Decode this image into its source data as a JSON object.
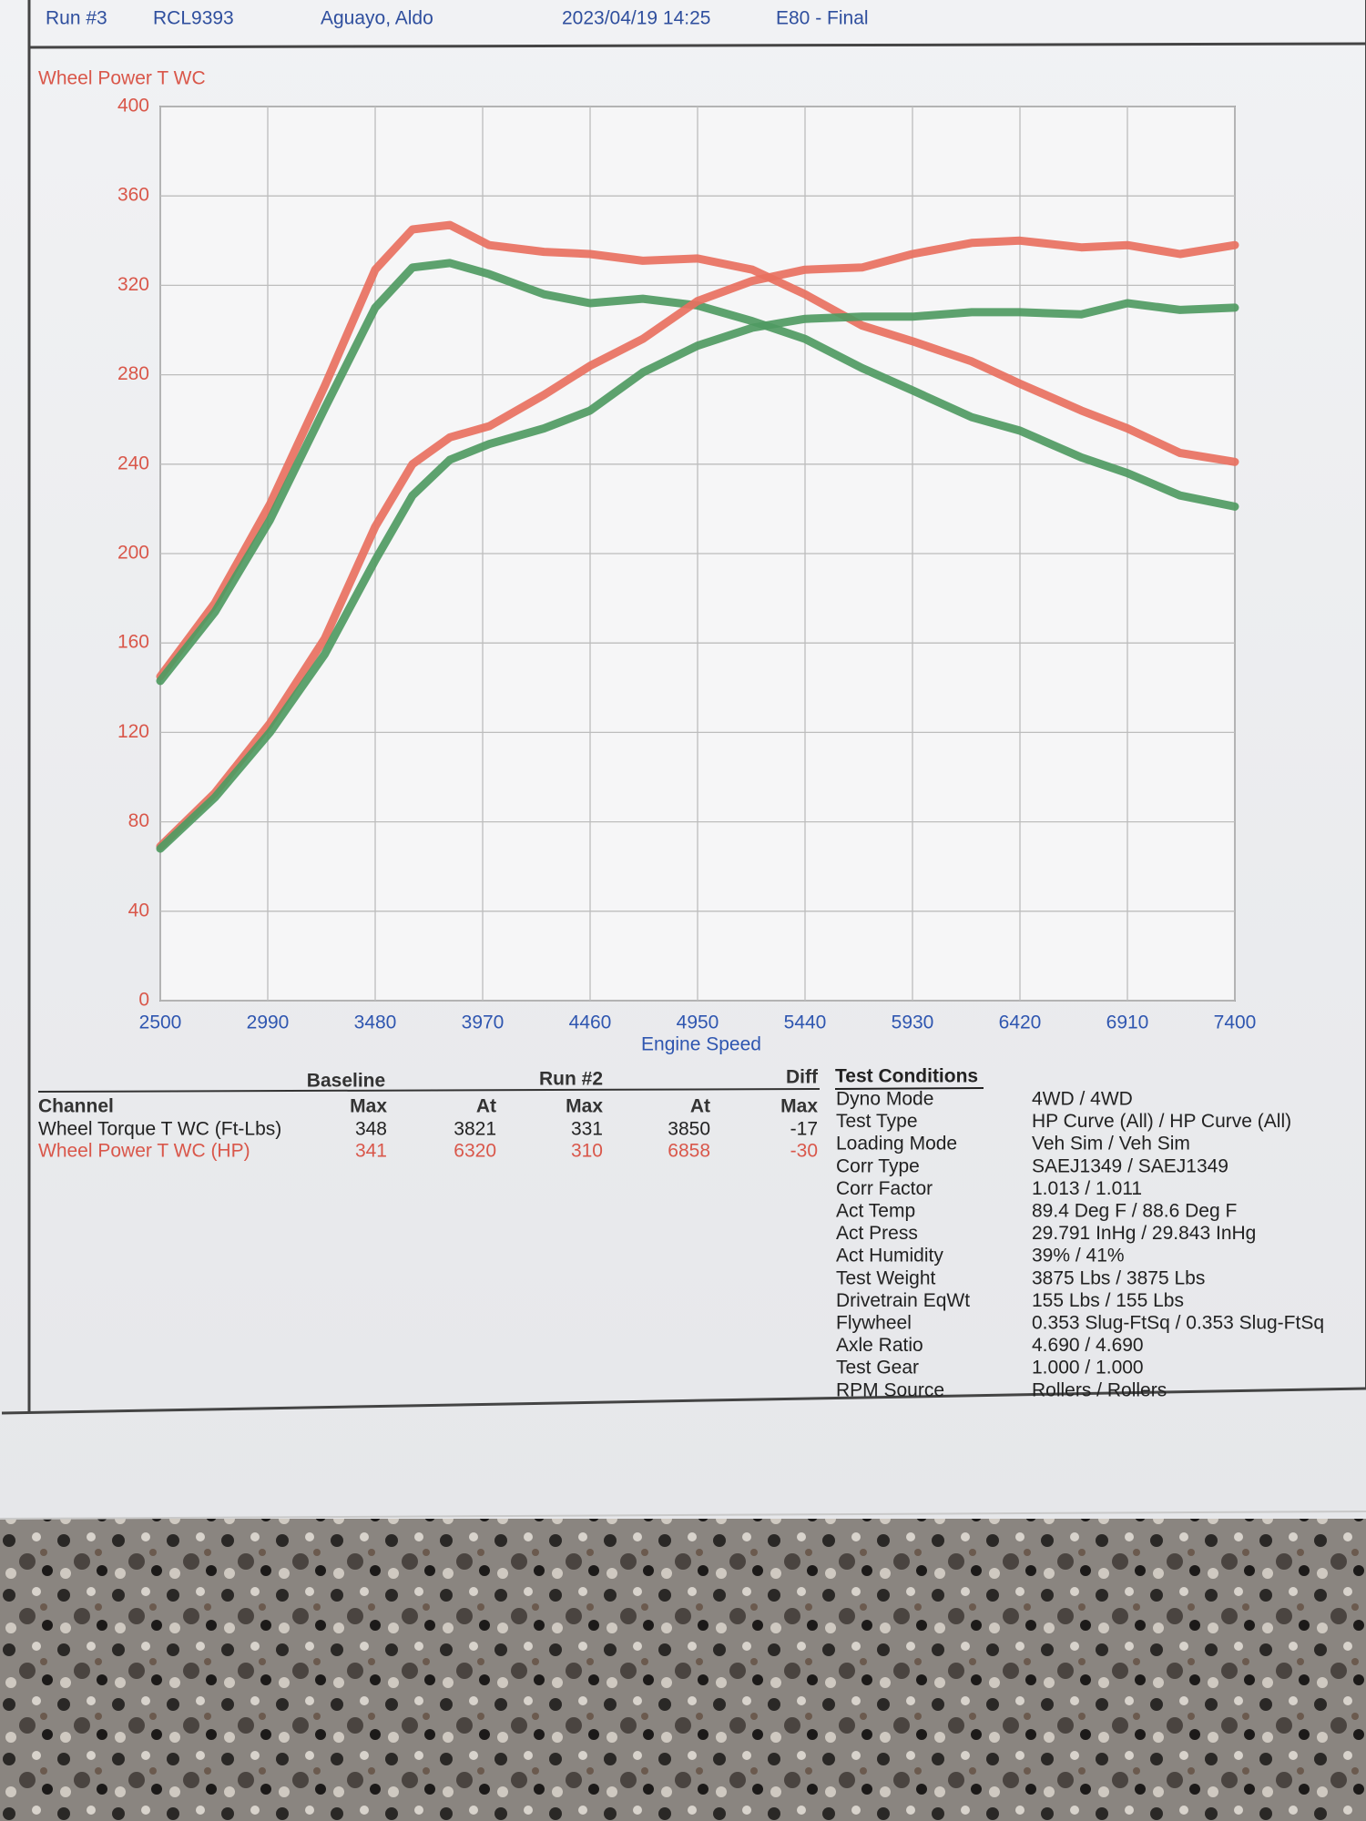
{
  "header": {
    "run": "Run #3",
    "id": "RCL9393",
    "customer": "Aguayo, Aldo",
    "date": "2023/04/19 14:25",
    "file": "E80 - Final"
  },
  "chart_data": {
    "type": "line",
    "title": "Wheel Power T WC",
    "x_label": "Engine Speed",
    "x": [
      2500,
      2750,
      3000,
      3250,
      3480,
      3650,
      3821,
      4000,
      4250,
      4460,
      4700,
      4950,
      5200,
      5440,
      5700,
      5930,
      6200,
      6420,
      6700,
      6910,
      7150,
      7400
    ],
    "series": [
      {
        "color": "#e8705f",
        "values": [
          145,
          178,
          222,
          275,
          327,
          345,
          347,
          338,
          335,
          334,
          331,
          332,
          327,
          316,
          302,
          295,
          286,
          276,
          264,
          256,
          245,
          241
        ]
      },
      {
        "color": "#4f9a62",
        "values": [
          143,
          174,
          215,
          265,
          310,
          328,
          330,
          325,
          316,
          312,
          314,
          311,
          304,
          296,
          283,
          273,
          261,
          255,
          243,
          236,
          226,
          221
        ]
      },
      {
        "color": "#e8705f",
        "values": [
          69,
          93,
          124,
          162,
          212,
          240,
          252,
          257,
          271,
          284,
          296,
          313,
          322,
          327,
          328,
          334,
          339,
          340,
          337,
          338,
          334,
          338
        ]
      },
      {
        "color": "#4f9a62",
        "values": [
          68,
          91,
          120,
          155,
          197,
          226,
          242,
          249,
          256,
          264,
          281,
          293,
          301,
          305,
          306,
          306,
          308,
          308,
          307,
          312,
          309,
          310
        ]
      }
    ],
    "xlim": [
      2500,
      7400
    ],
    "xticks": [
      2500,
      2990,
      3480,
      3970,
      4460,
      4950,
      5440,
      5930,
      6420,
      6910,
      7400
    ],
    "ylim": [
      0,
      400
    ],
    "yticks": [
      0,
      40,
      80,
      120,
      160,
      200,
      240,
      280,
      320,
      360,
      400
    ],
    "grid": true
  },
  "summary_table": {
    "group_headers": [
      "Baseline",
      "Run #2",
      "Diff"
    ],
    "columns": [
      "Channel",
      "Max",
      "At",
      "Max",
      "At",
      "Max"
    ],
    "rows": [
      {
        "color": "#222222",
        "cells": [
          "Wheel Torque T WC (Ft-Lbs)",
          348,
          3821,
          331,
          3850,
          -17
        ]
      },
      {
        "color": "#d9574a",
        "cells": [
          "Wheel Power T WC (HP)",
          341,
          6320,
          310,
          6858,
          -30
        ]
      }
    ]
  },
  "test_conditions": {
    "title": "Test Conditions",
    "rows": [
      [
        "Dyno Mode",
        "4WD / 4WD"
      ],
      [
        "Test Type",
        "HP Curve (All) / HP Curve (All)"
      ],
      [
        "Loading Mode",
        "Veh Sim / Veh Sim"
      ],
      [
        "Corr Type",
        "SAEJ1349 / SAEJ1349"
      ],
      [
        "Corr Factor",
        "1.013 / 1.011"
      ],
      [
        "Act Temp",
        "89.4 Deg F / 88.6 Deg F"
      ],
      [
        "Act Press",
        "29.791 InHg / 29.843 InHg"
      ],
      [
        "Act Humidity",
        "39% / 41%"
      ],
      [
        "Test Weight",
        "3875 Lbs / 3875 Lbs"
      ],
      [
        "Drivetrain EqWt",
        "155 Lbs / 155 Lbs"
      ],
      [
        "Flywheel",
        "0.353 Slug-FtSq / 0.353 Slug-FtSq"
      ],
      [
        "Axle Ratio",
        "4.690 / 4.690"
      ],
      [
        "Test Gear",
        "1.000 / 1.000"
      ],
      [
        "RPM Source",
        "Rollers / Rollers"
      ]
    ]
  }
}
